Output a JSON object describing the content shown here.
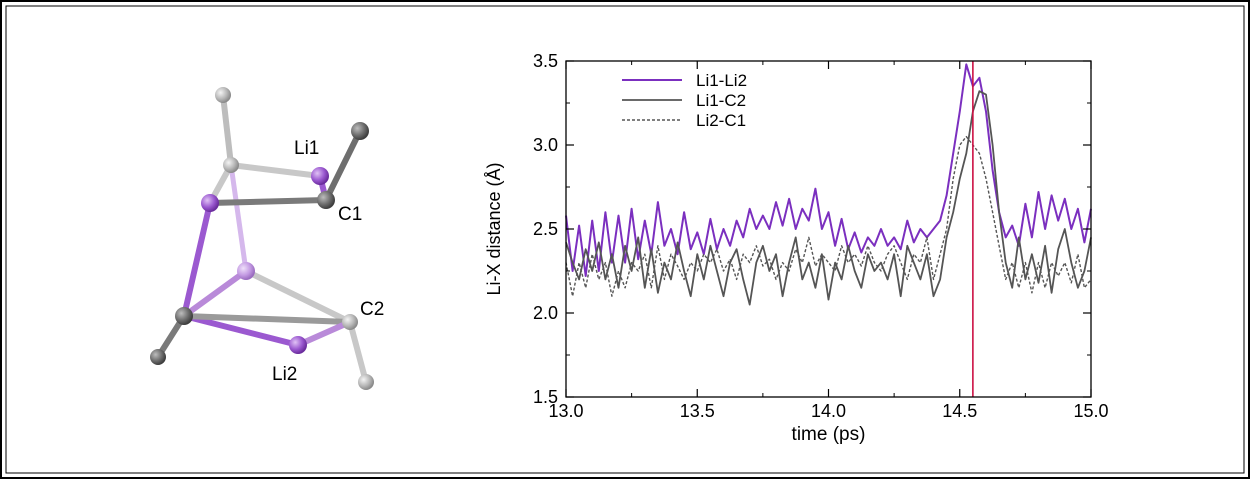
{
  "molecule": {
    "atom_labels": {
      "li1": "Li1",
      "c1": "C1",
      "c2": "C2",
      "li2": "Li2"
    },
    "colors": {
      "lithium": "#9b59d0",
      "carbon_dark": "#6e6e6e",
      "carbon_light": "#b8b8b8",
      "bond_purple": "#b98ad9"
    }
  },
  "chart_data": {
    "type": "line",
    "xlabel": "time (ps)",
    "ylabel": "Li-X distance (Å)",
    "xlim": [
      13.0,
      15.0
    ],
    "ylim": [
      1.5,
      3.5
    ],
    "xticks": [
      "13.0",
      "13.5",
      "14.0",
      "14.5",
      "15.0"
    ],
    "yticks": [
      "1.5",
      "2.0",
      "2.5",
      "3.0",
      "3.5"
    ],
    "grid": false,
    "legend_position": "top-left",
    "marker_line": {
      "x": 14.55,
      "color": "#cc1144"
    },
    "series": [
      {
        "name": "Li1-Li2",
        "color": "#7b2fbf",
        "style": "solid",
        "x": [
          13.0,
          13.025,
          13.05,
          13.075,
          13.1,
          13.125,
          13.15,
          13.175,
          13.2,
          13.225,
          13.25,
          13.275,
          13.3,
          13.325,
          13.35,
          13.375,
          13.4,
          13.425,
          13.45,
          13.475,
          13.5,
          13.525,
          13.55,
          13.575,
          13.6,
          13.625,
          13.65,
          13.675,
          13.7,
          13.725,
          13.75,
          13.775,
          13.8,
          13.825,
          13.85,
          13.875,
          13.9,
          13.925,
          13.95,
          13.975,
          14.0,
          14.025,
          14.05,
          14.075,
          14.1,
          14.125,
          14.15,
          14.175,
          14.2,
          14.225,
          14.25,
          14.275,
          14.3,
          14.325,
          14.35,
          14.375,
          14.4,
          14.425,
          14.45,
          14.475,
          14.5,
          14.525,
          14.55,
          14.575,
          14.6,
          14.625,
          14.65,
          14.675,
          14.7,
          14.725,
          14.75,
          14.775,
          14.8,
          14.825,
          14.85,
          14.875,
          14.9,
          14.925,
          14.95,
          14.975,
          15.0
        ],
        "y": [
          2.58,
          2.25,
          2.52,
          2.22,
          2.55,
          2.25,
          2.6,
          2.3,
          2.58,
          2.3,
          2.62,
          2.32,
          2.55,
          2.35,
          2.66,
          2.4,
          2.5,
          2.35,
          2.6,
          2.38,
          2.48,
          2.35,
          2.56,
          2.38,
          2.5,
          2.4,
          2.55,
          2.45,
          2.62,
          2.5,
          2.58,
          2.5,
          2.66,
          2.52,
          2.68,
          2.5,
          2.62,
          2.55,
          2.74,
          2.5,
          2.6,
          2.4,
          2.56,
          2.38,
          2.48,
          2.36,
          2.45,
          2.4,
          2.5,
          2.4,
          2.45,
          2.38,
          2.55,
          2.42,
          2.5,
          2.45,
          2.5,
          2.55,
          2.7,
          2.95,
          3.2,
          3.48,
          3.35,
          3.4,
          3.2,
          2.85,
          2.6,
          2.45,
          2.52,
          2.4,
          2.65,
          2.45,
          2.72,
          2.5,
          2.7,
          2.55,
          2.68,
          2.5,
          2.62,
          2.42,
          2.62
        ]
      },
      {
        "name": "Li1-C2",
        "color": "#555555",
        "style": "solid",
        "x": [
          13.0,
          13.025,
          13.05,
          13.075,
          13.1,
          13.125,
          13.15,
          13.175,
          13.2,
          13.225,
          13.25,
          13.275,
          13.3,
          13.325,
          13.35,
          13.375,
          13.4,
          13.425,
          13.45,
          13.475,
          13.5,
          13.525,
          13.55,
          13.575,
          13.6,
          13.625,
          13.65,
          13.675,
          13.7,
          13.725,
          13.75,
          13.775,
          13.8,
          13.825,
          13.85,
          13.875,
          13.9,
          13.925,
          13.95,
          13.975,
          14.0,
          14.025,
          14.05,
          14.075,
          14.1,
          14.125,
          14.15,
          14.175,
          14.2,
          14.225,
          14.25,
          14.275,
          14.3,
          14.325,
          14.35,
          14.375,
          14.4,
          14.425,
          14.45,
          14.475,
          14.5,
          14.525,
          14.55,
          14.575,
          14.6,
          14.625,
          14.65,
          14.675,
          14.7,
          14.725,
          14.75,
          14.775,
          14.8,
          14.825,
          14.85,
          14.875,
          14.9,
          14.925,
          14.95,
          14.975,
          15.0
        ],
        "y": [
          2.42,
          2.3,
          2.2,
          2.38,
          2.25,
          2.42,
          2.2,
          2.35,
          2.15,
          2.4,
          2.25,
          2.45,
          2.15,
          2.38,
          2.12,
          2.3,
          2.2,
          2.42,
          2.25,
          2.1,
          2.35,
          2.2,
          2.4,
          2.25,
          2.1,
          2.3,
          2.38,
          2.2,
          2.05,
          2.3,
          2.4,
          2.25,
          2.35,
          2.1,
          2.3,
          2.45,
          2.2,
          2.3,
          2.15,
          2.35,
          2.08,
          2.3,
          2.2,
          2.4,
          2.25,
          2.15,
          2.35,
          2.25,
          2.3,
          2.2,
          2.35,
          2.1,
          2.4,
          2.3,
          2.2,
          2.35,
          2.1,
          2.2,
          2.45,
          2.6,
          2.8,
          2.95,
          3.2,
          3.32,
          3.3,
          3.0,
          2.6,
          2.3,
          2.15,
          2.45,
          2.2,
          2.35,
          2.18,
          2.4,
          2.12,
          2.38,
          2.5,
          2.3,
          2.15,
          2.25,
          2.45
        ]
      },
      {
        "name": "Li2-C1",
        "color": "#555555",
        "style": "dashed",
        "x": [
          13.0,
          13.025,
          13.05,
          13.075,
          13.1,
          13.125,
          13.15,
          13.175,
          13.2,
          13.225,
          13.25,
          13.275,
          13.3,
          13.325,
          13.35,
          13.375,
          13.4,
          13.425,
          13.45,
          13.475,
          13.5,
          13.525,
          13.55,
          13.575,
          13.6,
          13.625,
          13.65,
          13.675,
          13.7,
          13.725,
          13.75,
          13.775,
          13.8,
          13.825,
          13.85,
          13.875,
          13.9,
          13.925,
          13.95,
          13.975,
          14.0,
          14.025,
          14.05,
          14.075,
          14.1,
          14.125,
          14.15,
          14.175,
          14.2,
          14.225,
          14.25,
          14.275,
          14.3,
          14.325,
          14.35,
          14.375,
          14.4,
          14.425,
          14.45,
          14.475,
          14.5,
          14.525,
          14.55,
          14.575,
          14.6,
          14.625,
          14.65,
          14.675,
          14.7,
          14.725,
          14.75,
          14.775,
          14.8,
          14.825,
          14.85,
          14.875,
          14.9,
          14.925,
          14.95,
          14.975,
          15.0
        ],
        "y": [
          2.3,
          2.1,
          2.3,
          2.15,
          2.35,
          2.2,
          2.3,
          2.1,
          2.25,
          2.15,
          2.3,
          2.25,
          2.35,
          2.15,
          2.4,
          2.2,
          2.35,
          2.28,
          2.2,
          2.3,
          2.25,
          2.35,
          2.3,
          2.38,
          2.25,
          2.32,
          2.2,
          2.35,
          2.3,
          2.4,
          2.28,
          2.32,
          2.2,
          2.3,
          2.25,
          2.38,
          2.3,
          2.45,
          2.28,
          2.35,
          2.3,
          2.25,
          2.4,
          2.3,
          2.35,
          2.28,
          2.4,
          2.3,
          2.25,
          2.35,
          2.4,
          2.3,
          2.2,
          2.35,
          2.3,
          2.45,
          2.2,
          2.35,
          2.5,
          2.8,
          3.0,
          3.05,
          3.0,
          2.95,
          2.8,
          2.6,
          2.4,
          2.2,
          2.3,
          2.15,
          2.3,
          2.12,
          2.3,
          2.15,
          2.3,
          2.22,
          2.3,
          2.18,
          2.35,
          2.15,
          2.2
        ]
      }
    ]
  }
}
